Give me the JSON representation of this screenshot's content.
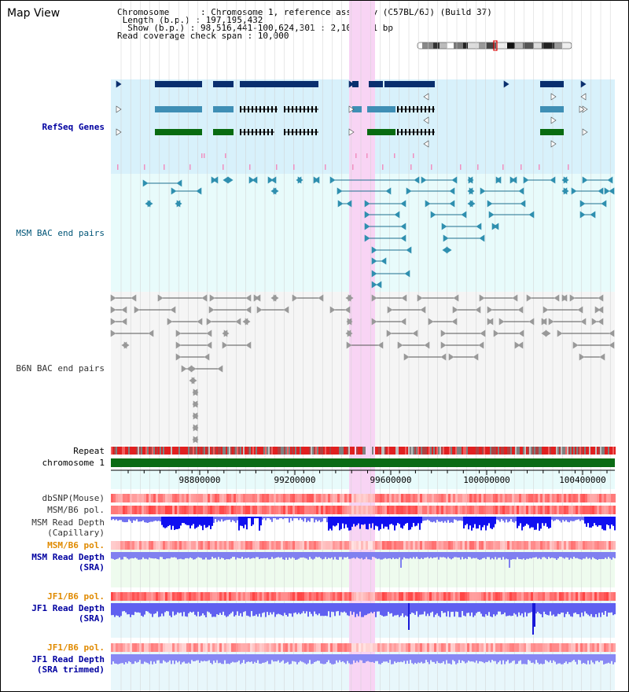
{
  "header": {
    "title": "Map View",
    "info_lines": [
      "Chromosome      : Chromosome 1, reference assembly (C57BL/6J) (Build 37)",
      " Length (b.p.) : 197,195,432",
      "  Show (b.p.) : 98,516,441-100,624,301 : 2,107,861 bp",
      "Read coverage check span : 10,000"
    ]
  },
  "tracks": {
    "refseq": "RefSeq Genes",
    "msm_bac": "MSM BAC end pairs",
    "b6n_bac": "B6N BAC end pairs",
    "repeat": "Repeat",
    "chromosome": "chromosome 1",
    "dbsnp": "dbSNP(Mouse)",
    "msm_b6_pol_1": "MSM/B6 pol.",
    "msm_read_depth_cap": "MSM Read Depth\n(Capillary)",
    "msm_b6_pol_2": "MSM/B6 pol.",
    "msm_read_depth_sra": "MSM Read Depth\n(SRA)",
    "jf1_b6_pol_1": "JF1/B6 pol.",
    "jf1_read_depth_sra": "JF1 Read Depth\n(SRA)",
    "jf1_b6_pol_2": "JF1/B6 pol.",
    "jf1_read_depth_trim": "JF1 Read Depth\n(SRA trimmed)"
  },
  "ruler": {
    "ticks": [
      "98800000",
      "99200000",
      "99600000",
      "100000000",
      "100400000"
    ]
  },
  "colors": {
    "refseq_bg": "#d8f1fb",
    "bac_bg": "#e8fbfb",
    "b6n_bg": "#f5f5f5",
    "highlight": "#f8d4f4",
    "gene_dark": "#0a2f6e",
    "gene_mid": "#3f8fb5",
    "gene_green": "#086b10",
    "chromosome_bar": "#0a6b14",
    "depth_blue": "#2020e8"
  }
}
